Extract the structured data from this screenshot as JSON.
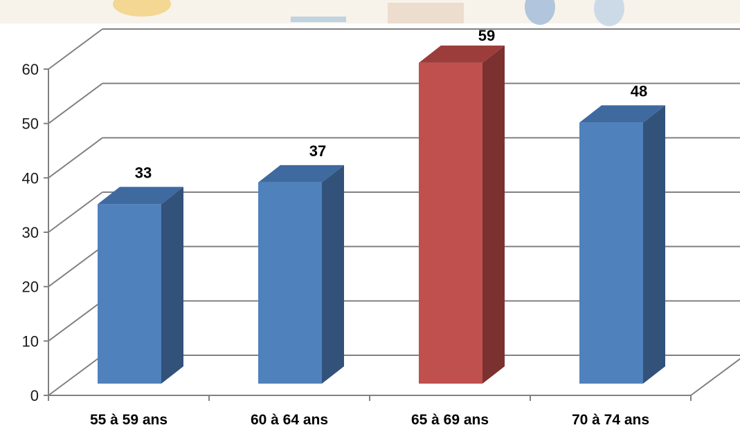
{
  "chart_data": {
    "type": "bar",
    "categories": [
      "55 à 59 ans",
      "60 à 64 ans",
      "65 à 69 ans",
      "70 à 74 ans"
    ],
    "values": [
      33,
      37,
      59,
      48
    ],
    "highlight_index": 2,
    "title": "",
    "xlabel": "",
    "ylabel": "",
    "ylim": [
      0,
      60
    ],
    "yticks": [
      0,
      10,
      20,
      30,
      40,
      50,
      60
    ],
    "grid": true,
    "style": "3d-column",
    "colors": {
      "bar_front": "#4f81bd",
      "bar_side": "#33527a",
      "bar_top": "#3e6aa0",
      "highlight_front": "#c0504d",
      "highlight_side": "#7b3130",
      "highlight_top": "#9c3d3b",
      "grid": "#808080"
    }
  }
}
